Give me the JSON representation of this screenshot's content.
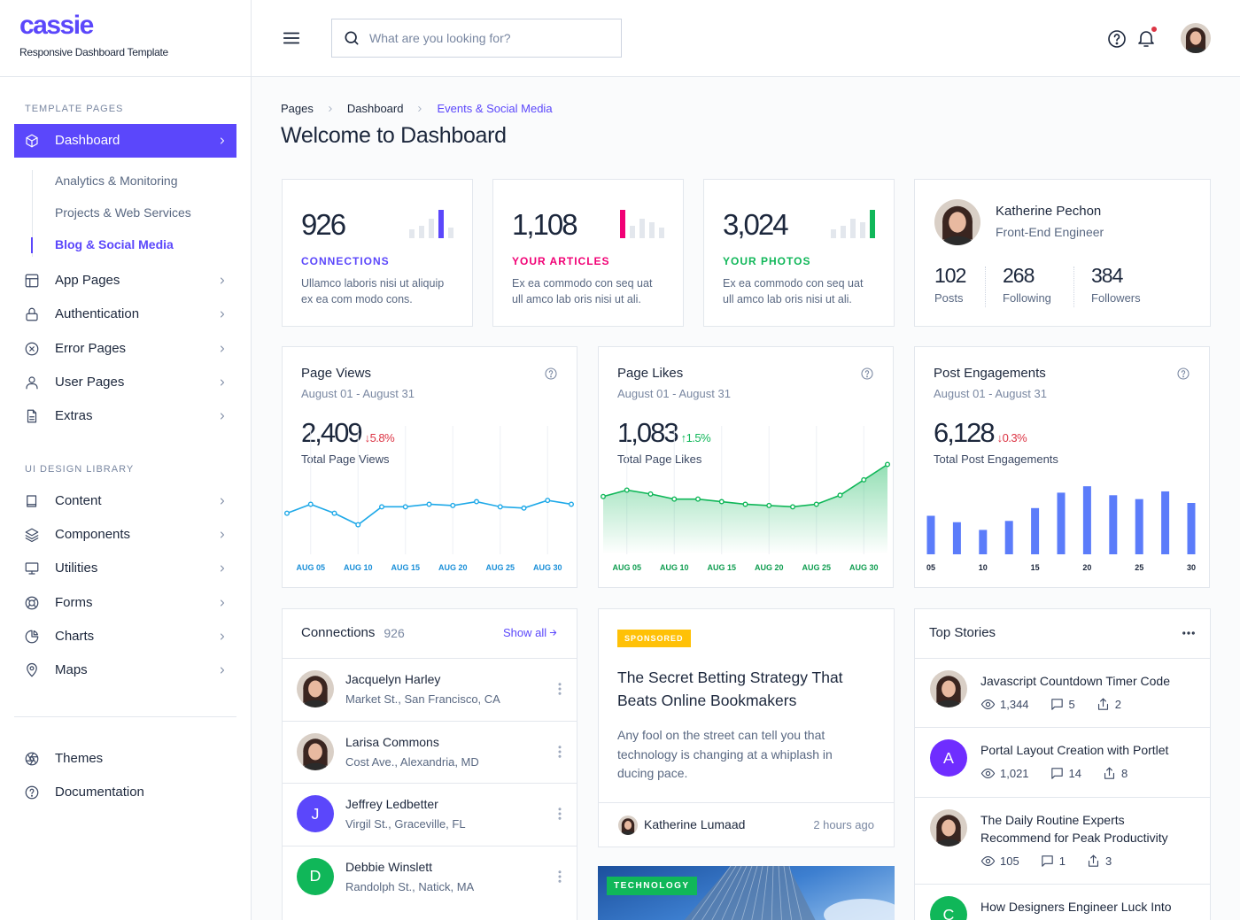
{
  "brand": {
    "name": "cassie",
    "tagline": "Responsive Dashboard Template"
  },
  "sidebar": {
    "template_label": "TEMPLATE PAGES",
    "active": "Dashboard",
    "submenu": [
      "Analytics & Monitoring",
      "Projects & Web Services",
      "Blog & Social Media"
    ],
    "pages": [
      "App Pages",
      "Authentication",
      "Error Pages",
      "User Pages",
      "Extras"
    ],
    "library_label": "UI DESIGN LIBRARY",
    "library": [
      "Content",
      "Components",
      "Utilities",
      "Forms",
      "Charts",
      "Maps"
    ],
    "footer": [
      "Themes",
      "Documentation"
    ]
  },
  "header": {
    "search_placeholder": "What are you looking for?"
  },
  "breadcrumb": [
    "Pages",
    "Dashboard",
    "Events & Social Media"
  ],
  "page_title": "Welcome to Dashboard",
  "stats": [
    {
      "value": "926",
      "label": "CONNECTIONS",
      "text": "Ullamco laboris nisi ut aliquip ex ea com modo cons.",
      "color": "#5b47fb"
    },
    {
      "value": "1,108",
      "label": "YOUR ARTICLES",
      "text": "Ex ea commodo con seq uat ull amco lab oris nisi ut ali.",
      "color": "#f10075"
    },
    {
      "value": "3,024",
      "label": "YOUR PHOTOS",
      "text": "Ex ea commodo con seq uat ull amco lab oris nisi ut ali.",
      "color": "#10b759"
    }
  ],
  "profile": {
    "name": "Katherine Pechon",
    "role": "Front-End Engineer",
    "stats": [
      {
        "value": "102",
        "label": "Posts"
      },
      {
        "value": "268",
        "label": "Following"
      },
      {
        "value": "384",
        "label": "Followers"
      }
    ]
  },
  "charts": [
    {
      "type": "line",
      "title": "Page Views",
      "subtitle": "August 01 - August 31",
      "total": "2,409",
      "change": "↓5.8%",
      "change_color": "#dc3545",
      "caption": "Total Page Views",
      "color": "#1fa9e8",
      "label_color": "#1a8fd8",
      "categories": [
        null,
        "AUG 05",
        null,
        "AUG 10",
        null,
        "AUG 15",
        null,
        "AUG 20",
        null,
        "AUG 25",
        null,
        "AUG 30",
        null
      ],
      "values": [
        32,
        39,
        32,
        23,
        37,
        37,
        39,
        38,
        41,
        37,
        36,
        42,
        39
      ],
      "ylim": [
        0,
        100
      ]
    },
    {
      "type": "area",
      "title": "Page Likes",
      "subtitle": "August 01 - August 31",
      "total": "1,083",
      "change": "↑1.5%",
      "change_color": "#10b759",
      "caption": "Total Page Likes",
      "color": "#10b759",
      "label_color": "#0f9d50",
      "categories": [
        null,
        "AUG 05",
        null,
        "AUG 10",
        null,
        "AUG 15",
        null,
        "AUG 20",
        null,
        "AUG 25",
        null,
        "AUG 30",
        null
      ],
      "values": [
        45,
        50,
        47,
        43,
        43,
        41,
        39,
        38,
        37,
        39,
        46,
        58,
        70
      ],
      "ylim": [
        0,
        100
      ]
    },
    {
      "type": "bar",
      "title": "Post Engagements",
      "subtitle": "August 01 - August 31",
      "total": "6,128",
      "change": "↓0.3%",
      "change_color": "#dc3545",
      "caption": "Total Post Engagements",
      "color": "#5b7cfa",
      "label_color": "#1c273c",
      "categories": [
        "05",
        null,
        "10",
        null,
        "15",
        null,
        "20",
        null,
        "25",
        null,
        "30"
      ],
      "values": [
        30,
        25,
        19,
        26,
        36,
        48,
        53,
        46,
        43,
        49,
        40
      ],
      "ylim": [
        0,
        100
      ]
    }
  ],
  "connections": {
    "title": "Connections",
    "count": "926",
    "link": "Show all",
    "items": [
      {
        "name": "Jacquelyn Harley",
        "address": "Market St., San Francisco, CA"
      },
      {
        "name": "Larisa Commons",
        "address": "Cost Ave., Alexandria, MD"
      },
      {
        "name": "Jeffrey Ledbetter",
        "address": "Virgil St., Graceville, FL",
        "initial": "J",
        "color": "#5b47fb"
      },
      {
        "name": "Debbie Winslett",
        "address": "Randolph St., Natick, MA",
        "initial": "D",
        "color": "#10b759"
      }
    ]
  },
  "sponsored": {
    "badge": "SPONSORED",
    "title": "The Secret Betting Strategy That Beats Online Bookmakers",
    "text": "Any fool on the street can tell you that technology is changing at a whiplash in ducing pace.",
    "author": "Katherine Lumaad",
    "time": "2 hours ago"
  },
  "technology": {
    "badge": "TECHNOLOGY"
  },
  "top_stories": {
    "title": "Top Stories",
    "items": [
      {
        "title": "Javascript Countdown Timer Code",
        "views": "1,344",
        "comments": "5",
        "shares": "2"
      },
      {
        "title": "Portal Layout Creation with Portlet",
        "views": "1,021",
        "comments": "14",
        "shares": "8",
        "initial": "A",
        "color": "#6f2dff"
      },
      {
        "title": "The Daily Routine Experts Recommend for Peak Productivity",
        "views": "105",
        "comments": "1",
        "shares": "3"
      },
      {
        "title": "How Designers Engineer Luck Into",
        "initial": "C",
        "color": "#10b759"
      }
    ]
  }
}
